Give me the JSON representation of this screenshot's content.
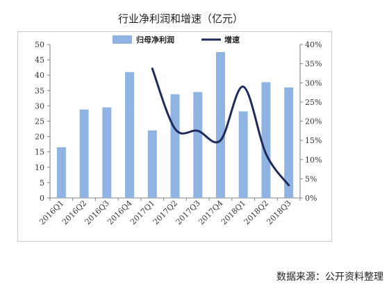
{
  "title": "行业净利润和增速（亿元）",
  "source": "数据来源：公开资料整理",
  "colors": {
    "bar": "#8fb4e3",
    "line": "#1f2a5a",
    "axis": "#808080"
  },
  "chart_data": {
    "type": "bar",
    "categories": [
      "2016Q1",
      "2016Q2",
      "2016Q3",
      "2016Q4",
      "2017Q1",
      "2017Q2",
      "2017Q3",
      "2017Q4",
      "2018Q1",
      "2018Q2",
      "2018Q3"
    ],
    "series": [
      {
        "name": "归母净利润",
        "type": "bar",
        "axis": "left",
        "values": [
          16.5,
          28.8,
          29.5,
          41,
          22,
          33.8,
          34.5,
          47.5,
          28.2,
          37.7,
          36
        ]
      },
      {
        "name": "增速",
        "type": "line",
        "axis": "right",
        "unit": "%",
        "values": [
          null,
          null,
          null,
          null,
          33.7,
          18,
          17.5,
          15,
          29,
          11.5,
          3.3
        ]
      }
    ],
    "y_left": {
      "min": 0,
      "max": 50,
      "ticks": [
        "0",
        "5",
        "10",
        "15",
        "20",
        "25",
        "30",
        "35",
        "40",
        "45",
        "50"
      ]
    },
    "y_right": {
      "min": 0,
      "max": 40,
      "ticks": [
        "0%",
        "5%",
        "10%",
        "15%",
        "20%",
        "25%",
        "30%",
        "35%",
        "40%"
      ]
    },
    "legend_position": "top",
    "grid": false
  }
}
